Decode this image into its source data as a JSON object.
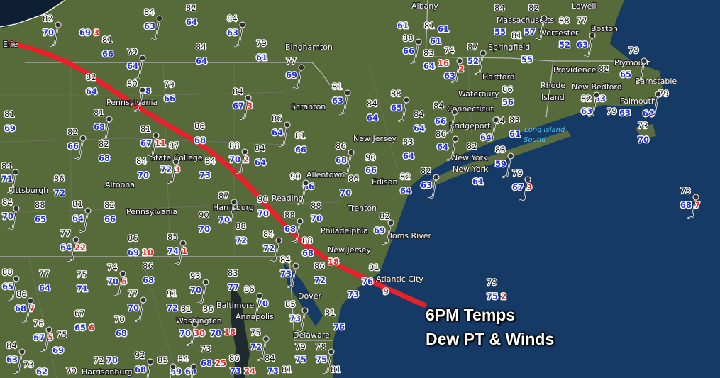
{
  "title_lines": [
    "6PM Temps",
    "Dew PT & Winds"
  ],
  "colors": {
    "temperature": "#111111",
    "dewpoint": "#2430d8",
    "gust": "#e02a2a",
    "front_line": "#e8202a",
    "ocean": "#163a66",
    "land": "#566a3a"
  },
  "water_labels": [
    "Long Island",
    "Sound"
  ],
  "cities": [
    "Erie",
    "Binghamton",
    "Scranton",
    "Pennsylvania",
    "State College",
    "Altoona",
    "Pittsburgh",
    "Allentown",
    "Pennsylvania",
    "Harrisburg",
    "Reading",
    "Trenton",
    "Philadelphia",
    "New Jersey",
    "Edison",
    "Toms River",
    "New Jersey",
    "Atlantic City",
    "Baltimore",
    "Annapolis",
    "Washington",
    "Dover",
    "Delaware",
    "Harrisonburg",
    "Hartford",
    "Waterbury",
    "Connecticut",
    "Bridgeport",
    "New York",
    "New York",
    "Providence",
    "Rhode",
    "Island",
    "New Bedford",
    "Plymouth",
    "Barnstable",
    "Falmouth",
    "Boston",
    "Worcester",
    "Springfield",
    "Massachusetts",
    "Albany",
    "Lowell"
  ],
  "stations": [
    {
      "temp": "82",
      "dew": "70"
    },
    {
      "temp": "",
      "dew": "69",
      "gust": "3"
    },
    {
      "temp": "84",
      "dew": "63"
    },
    {
      "temp": "82",
      "dew": "64"
    },
    {
      "temp": "84",
      "dew": "63"
    },
    {
      "temp": "79",
      "dew": "61"
    },
    {
      "temp": "77",
      "dew": "69"
    },
    {
      "temp": "81",
      "dew": "66"
    },
    {
      "temp": "79",
      "dew": "64"
    },
    {
      "temp": "84",
      "dew": "64"
    },
    {
      "temp": "80",
      "dew": "68"
    },
    {
      "temp": "79",
      "dew": "66"
    },
    {
      "temp": "84",
      "dew": "67",
      "gust": "3"
    },
    {
      "temp": "82",
      "dew": "64"
    },
    {
      "temp": "81",
      "dew": "68"
    },
    {
      "temp": "81",
      "dew": "69"
    },
    {
      "temp": "82",
      "dew": "66"
    },
    {
      "temp": "82",
      "dew": "68"
    },
    {
      "temp": "81",
      "dew": "67",
      "gust": "11"
    },
    {
      "temp": "86",
      "dew": "68"
    },
    {
      "temp": "88",
      "dew": "70",
      "gust": "2"
    },
    {
      "temp": "84",
      "dew": "64"
    },
    {
      "temp": "86",
      "dew": "64"
    },
    {
      "temp": "81",
      "dew": "66"
    },
    {
      "temp": "81",
      "dew": "63"
    },
    {
      "temp": "84",
      "dew": "70"
    },
    {
      "temp": "87",
      "dew": "72",
      "gust": "3"
    },
    {
      "temp": "84",
      "dew": "73"
    },
    {
      "temp": "84",
      "dew": "71"
    },
    {
      "temp": "86",
      "dew": "72"
    },
    {
      "temp": "90",
      "dew": "66"
    },
    {
      "temp": "86",
      "dew": "70"
    },
    {
      "temp": "86",
      "dew": "68"
    },
    {
      "temp": "",
      "dew": "61"
    },
    {
      "temp": "",
      "dew": "61"
    },
    {
      "temp": "81",
      "dew": "61"
    },
    {
      "temp": "88",
      "dew": "66"
    },
    {
      "temp": "83",
      "dew": "64",
      "gust": "16"
    },
    {
      "temp": "74",
      "dew": "63",
      "gust": "2"
    },
    {
      "temp": "84",
      "dew": "55"
    },
    {
      "temp": "82",
      "dew": "57"
    },
    {
      "temp": "88",
      "dew": "52"
    },
    {
      "temp": "87",
      "dew": "52"
    },
    {
      "temp": "81",
      "dew": "55"
    },
    {
      "temp": "77",
      "dew": "63"
    },
    {
      "temp": "86",
      "dew": "56"
    },
    {
      "temp": "79",
      "dew": "65"
    },
    {
      "temp": "82",
      "dew": "63"
    },
    {
      "temp": "82",
      "dew": "63"
    },
    {
      "temp": "79",
      "dew": "63"
    },
    {
      "temp": "79",
      "dew": "64"
    },
    {
      "temp": "73",
      "dew": "70"
    },
    {
      "temp": "88",
      "dew": "65"
    },
    {
      "temp": "84",
      "dew": "64"
    },
    {
      "temp": "84",
      "dew": "66"
    },
    {
      "temp": "84",
      "dew": "64"
    },
    {
      "temp": "84",
      "dew": "64"
    },
    {
      "temp": "83",
      "dew": "61"
    },
    {
      "temp": "86",
      "dew": "64"
    },
    {
      "temp": "83",
      "dew": "64"
    },
    {
      "temp": "83",
      "dew": "59"
    },
    {
      "temp": "82",
      "dew": "61"
    },
    {
      "temp": "79",
      "dew": "67",
      "gust": "9"
    },
    {
      "temp": "90",
      "dew": "66"
    },
    {
      "temp": "82",
      "dew": "63"
    },
    {
      "temp": "82",
      "dew": "64"
    },
    {
      "temp": "73",
      "dew": "68",
      "gust": "7"
    },
    {
      "temp": "79",
      "dew": "75",
      "gust": "2"
    },
    {
      "temp": "84",
      "dew": "70"
    },
    {
      "temp": "88",
      "dew": "65"
    },
    {
      "temp": "81",
      "dew": "64"
    },
    {
      "temp": "82",
      "dew": "66"
    },
    {
      "temp": "77",
      "dew": "64",
      "gust": "22"
    },
    {
      "temp": "86",
      "dew": "69",
      "gust": "10"
    },
    {
      "temp": "85",
      "dew": "74",
      "gust": "1"
    },
    {
      "temp": "86",
      "dew": "68"
    },
    {
      "temp": "74",
      "dew": "70",
      "gust": "6"
    },
    {
      "temp": "75",
      "dew": "71"
    },
    {
      "temp": "88",
      "dew": "65"
    },
    {
      "temp": "77",
      "dew": "64"
    },
    {
      "temp": "86",
      "dew": "68",
      "gust": "7"
    },
    {
      "temp": "90",
      "dew": "70"
    },
    {
      "temp": "87",
      "dew": "70"
    },
    {
      "temp": "88",
      "dew": "72"
    },
    {
      "temp": "84",
      "dew": "72"
    },
    {
      "temp": "90",
      "dew": "70"
    },
    {
      "temp": "88",
      "dew": "68"
    },
    {
      "temp": "88",
      "dew": "70"
    },
    {
      "temp": "93",
      "dew": "70"
    },
    {
      "temp": "83",
      "dew": "77"
    },
    {
      "temp": "86",
      "dew": "70"
    },
    {
      "temp": "91",
      "dew": "72"
    },
    {
      "temp": "77",
      "dew": "70"
    },
    {
      "temp": "67",
      "dew": "65",
      "gust": "6"
    },
    {
      "temp": "76",
      "dew": "67",
      "gust": "5"
    },
    {
      "temp": "75",
      "dew": "69"
    },
    {
      "temp": "84",
      "dew": "63"
    },
    {
      "temp": "70",
      "dew": "68"
    },
    {
      "temp": "81",
      "dew": "70",
      "gust": "30"
    },
    {
      "temp": "86",
      "dew": "70",
      "gust": "18"
    },
    {
      "temp": "85",
      "dew": "69"
    },
    {
      "temp": "73",
      "dew": "68",
      "gust": "25"
    },
    {
      "temp": "84",
      "dew": "69"
    },
    {
      "temp": "72",
      "dew": "70"
    },
    {
      "temp": "92",
      "dew": "68"
    },
    {
      "temp": "",
      "dew": "73",
      "gust": "24"
    },
    {
      "temp": "84",
      "dew": "73"
    },
    {
      "temp": "86",
      "dew": "72"
    },
    {
      "temp": "85",
      "dew": "73"
    },
    {
      "temp": "81",
      "dew": "76"
    },
    {
      "temp": "75",
      "dew": "72"
    },
    {
      "temp": "79",
      "dew": "75"
    },
    {
      "temp": "78",
      "dew": "75"
    },
    {
      "temp": "88",
      "dew": "68",
      "gust": "18"
    },
    {
      "temp": "82",
      "dew": "69"
    },
    {
      "temp": "81",
      "dew": "76",
      "gust": "9"
    },
    {
      "temp": "",
      "dew": "73"
    },
    {
      "temp": "81",
      "dew": "73"
    },
    {
      "temp": "81",
      "dew": ""
    },
    {
      "temp": "84",
      "dew": ""
    },
    {
      "temp": "86",
      "dew": ""
    },
    {
      "temp": "73",
      "dew": "62"
    },
    {
      "temp": "70",
      "dew": ""
    }
  ]
}
